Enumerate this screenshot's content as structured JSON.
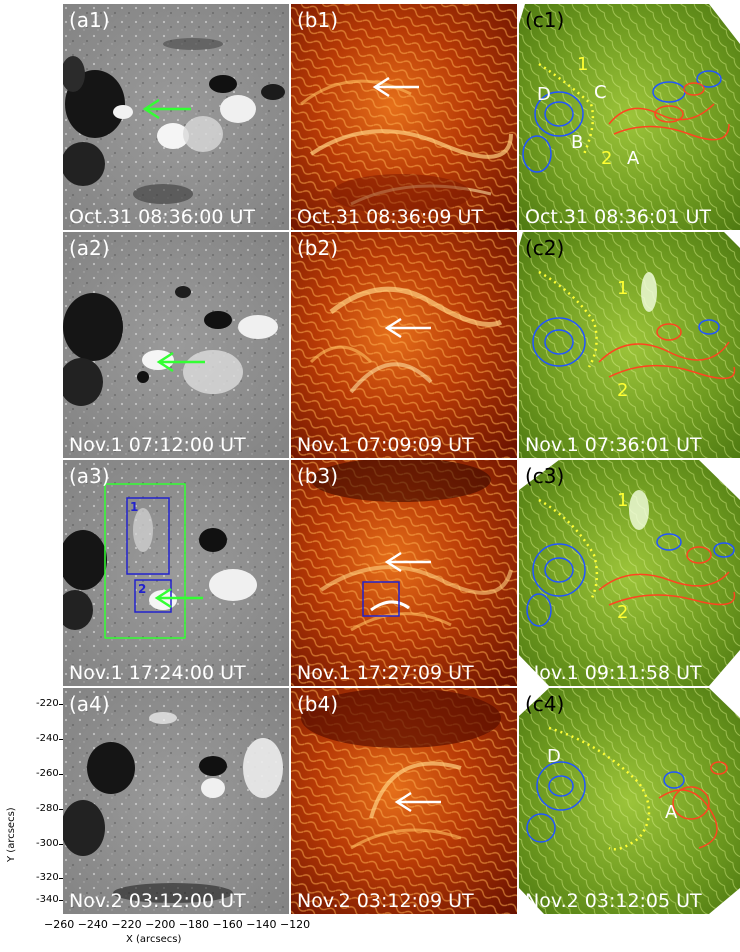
{
  "panels": {
    "a1": {
      "label": "(a1)",
      "time": "Oct.31 08:36:00  UT"
    },
    "b1": {
      "label": "(b1)",
      "time": "Oct.31 08:36:09  UT"
    },
    "c1": {
      "label": "(c1)",
      "time": "Oct.31 08:36:01  UT"
    },
    "a2": {
      "label": "(a2)",
      "time": "Nov.1   07:12:00  UT"
    },
    "b2": {
      "label": "(b2)",
      "time": "Nov.1  07:09:09  UT"
    },
    "c2": {
      "label": "(c2)",
      "time": "Nov.1 07:36:01  UT"
    },
    "a3": {
      "label": "(a3)",
      "time": "Nov.1   17:24:00  UT"
    },
    "b3": {
      "label": "(b3)",
      "time": "Nov.1   17:27:09  UT"
    },
    "c3": {
      "label": "(c3)",
      "time": "Nov.1  09:11:58  UT"
    },
    "a4": {
      "label": "(a4)",
      "time": "Nov.2   03:12:00  UT"
    },
    "b4": {
      "label": "(b4)",
      "time": "Nov.2   03:12:09  UT"
    },
    "c4": {
      "label": "(c4)",
      "time": "Nov.2   03:12:05  UT"
    }
  },
  "annotations": {
    "c1": {
      "one": "1",
      "two": "2",
      "A": "A",
      "B": "B",
      "C": "C",
      "D": "D"
    },
    "c2": {
      "one": "1",
      "two": "2"
    },
    "c3": {
      "one": "1",
      "two": "2"
    },
    "c4": {
      "A": "A",
      "D": "D"
    },
    "a3": {
      "box1": "1",
      "box2": "2"
    }
  },
  "axes": {
    "ylabel": "Y (arcsecs)",
    "xlabel": "X (arcsecs)",
    "yticks": [
      "-220",
      "-240",
      "-260",
      "-280",
      "-300",
      "-320",
      "-340"
    ],
    "xticks": "−260 −240 −220 −200 −180 −160 −140 −120"
  },
  "colors": {
    "magnetogram_bg": "#8c8c8c",
    "euv_bg": "#a02a00",
    "green_bg": "#6e9a20",
    "arrow_green": "#33ff33",
    "contour_blue": "#2255ff",
    "contour_red": "#ff4420",
    "dotted_yellow": "#ffff33"
  }
}
